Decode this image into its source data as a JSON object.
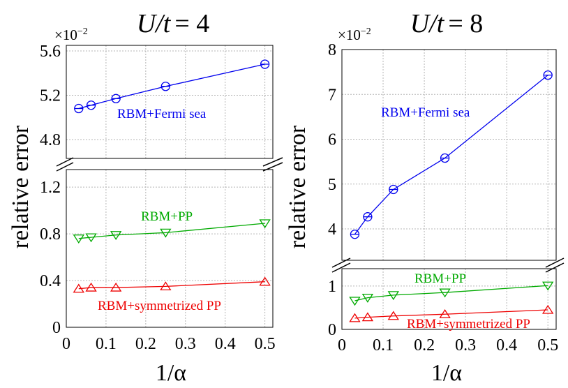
{
  "chart_data": [
    {
      "type": "line",
      "title": "U/t = 4",
      "title_main": "U/t",
      "title_eq": "= 4",
      "xlabel": "1/α",
      "ylabel": "relative error",
      "xlim": [
        0,
        0.52
      ],
      "xticks": [
        0,
        0.1,
        0.2,
        0.3,
        0.4,
        0.5
      ],
      "xtick_labels": [
        "0",
        "0.1",
        "0.2",
        "0.3",
        "0.4",
        "0.5"
      ],
      "grid": true,
      "broken_y_axis": true,
      "upper": {
        "multiplier": "×10",
        "multiplier_exp": "−2",
        "ylim": [
          4.63,
          5.65
        ],
        "yticks": [
          4.8,
          5.2,
          5.6
        ],
        "ytick_labels": [
          "4.8",
          "5.2",
          "5.6"
        ],
        "series": [
          {
            "label": "RBM+Fermi sea",
            "color": "#0000ee",
            "marker": "circle",
            "x": [
              0.03125,
              0.0625,
              0.125,
              0.25,
              0.5
            ],
            "y": [
              5.08,
              5.11,
              5.17,
              5.28,
              5.48
            ]
          }
        ]
      },
      "lower": {
        "ylim": [
          0,
          1.35
        ],
        "yticks": [
          0,
          0.4,
          0.8,
          1.2
        ],
        "ytick_labels": [
          "0",
          "0.4",
          "0.8",
          "1.2"
        ],
        "series": [
          {
            "label": "RBM+PP",
            "color": "#00aa00",
            "marker": "triangle-down",
            "x": [
              0.03125,
              0.0625,
              0.125,
              0.25,
              0.5
            ],
            "y": [
              0.76,
              0.77,
              0.79,
              0.81,
              0.89
            ]
          },
          {
            "label": "RBM+symmetrized PP",
            "color": "#ee0000",
            "marker": "triangle-up",
            "x": [
              0.03125,
              0.0625,
              0.125,
              0.25,
              0.5
            ],
            "y": [
              0.33,
              0.34,
              0.34,
              0.35,
              0.39
            ]
          }
        ]
      }
    },
    {
      "type": "line",
      "title": "U/t = 8",
      "title_main": "U/t",
      "title_eq": "= 8",
      "xlabel": "1/α",
      "ylabel": "relative error",
      "xlim": [
        0,
        0.52
      ],
      "xticks": [
        0,
        0.1,
        0.2,
        0.3,
        0.4,
        0.5
      ],
      "xtick_labels": [
        "0",
        "0.1",
        "0.2",
        "0.3",
        "0.4",
        "0.5"
      ],
      "grid": true,
      "broken_y_axis": true,
      "upper": {
        "multiplier": "×10",
        "multiplier_exp": "−2",
        "ylim": [
          3.3,
          8
        ],
        "yticks": [
          4,
          5,
          6,
          7,
          8
        ],
        "ytick_labels": [
          "4",
          "5",
          "6",
          "7",
          "8"
        ],
        "series": [
          {
            "label": "RBM+Fermi sea",
            "color": "#0000ee",
            "marker": "circle",
            "x": [
              0.03125,
              0.0625,
              0.125,
              0.25,
              0.5
            ],
            "y": [
              3.88,
              4.27,
              4.88,
              5.58,
              7.43
            ]
          }
        ]
      },
      "lower": {
        "ylim": [
          0,
          1.4
        ],
        "yticks": [
          0,
          1
        ],
        "ytick_labels": [
          "0",
          "1"
        ],
        "series": [
          {
            "label": "RBM+PP",
            "color": "#00aa00",
            "marker": "triangle-down",
            "x": [
              0.03125,
              0.0625,
              0.125,
              0.25,
              0.5
            ],
            "y": [
              0.66,
              0.73,
              0.79,
              0.85,
              1.01
            ]
          },
          {
            "label": "RBM+symmetrized PP",
            "color": "#ee0000",
            "marker": "triangle-up",
            "x": [
              0.03125,
              0.0625,
              0.125,
              0.25,
              0.5
            ],
            "y": [
              0.26,
              0.28,
              0.31,
              0.35,
              0.45
            ]
          }
        ]
      }
    }
  ]
}
